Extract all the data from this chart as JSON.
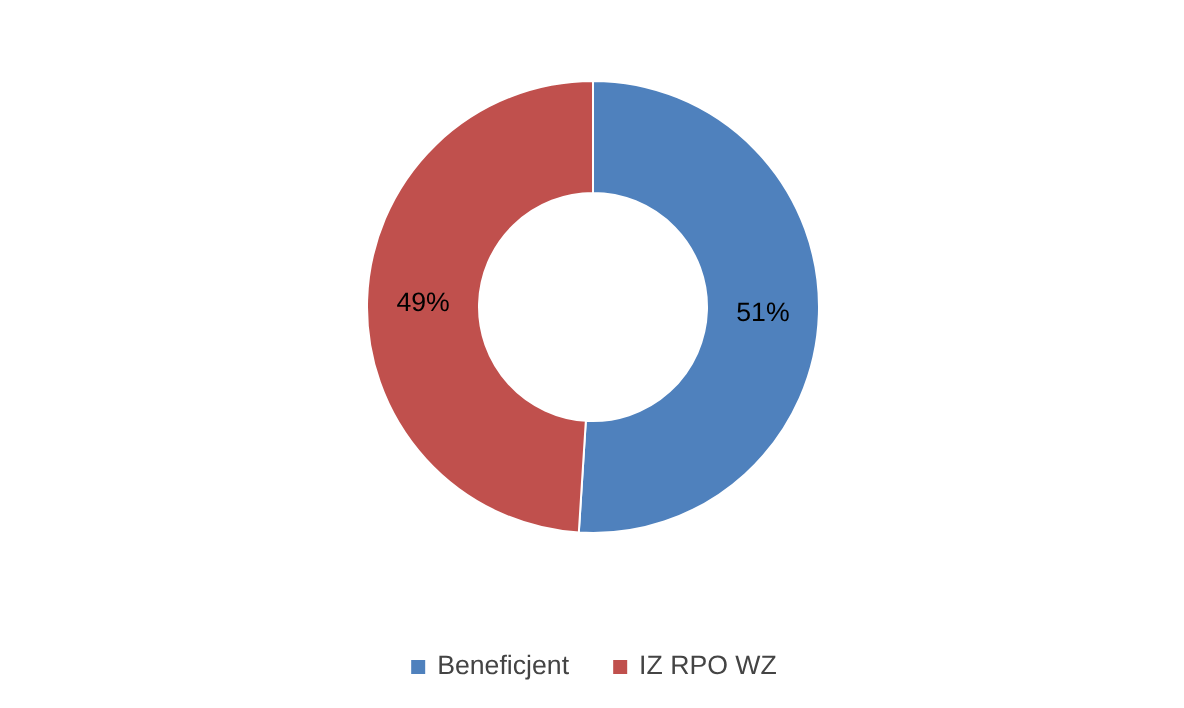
{
  "chart_data": {
    "type": "donut",
    "categories": [
      "Beneficjent",
      "IZ RPO WZ"
    ],
    "values": [
      51,
      49
    ],
    "colors": [
      "#4f81bd",
      "#c0504d"
    ],
    "value_labels": [
      "51%",
      "49%"
    ],
    "legend": "bottom"
  }
}
